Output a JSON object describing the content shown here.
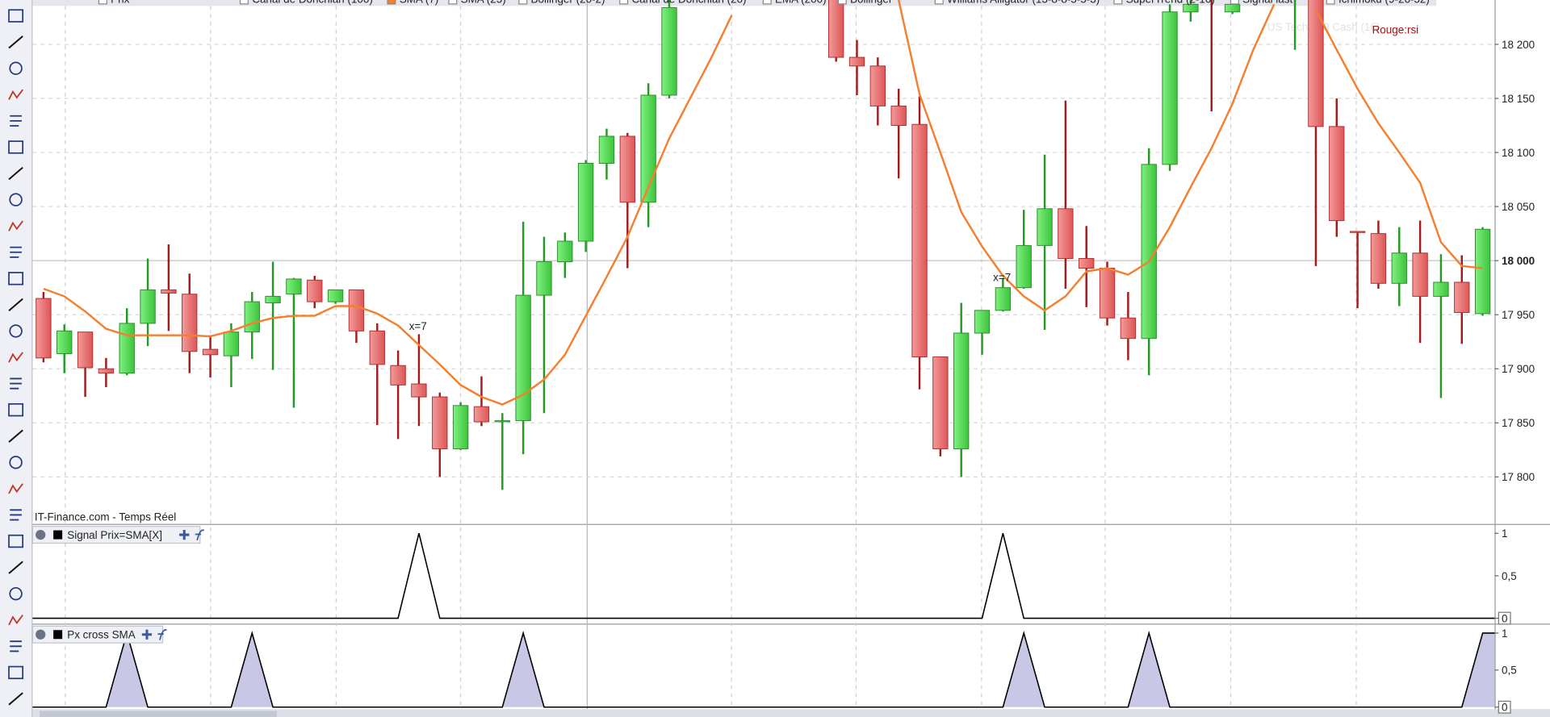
{
  "header": {
    "indicators": [
      "Prix",
      "Canal de Donchian (100)",
      "SMA (7)",
      "SMA (25)",
      "Bollinger (20-2)",
      "Canal de Donchian (20)",
      "EMA (200)",
      "Bollinger",
      "Williams Alligator (13-8-8-5-5-3)",
      "SuperTrend (2-10)",
      "Signal last",
      "Ichimoku (9-26-52)"
    ]
  },
  "chart_data": [
    {
      "type": "candlestick",
      "watermark": "US Tech 100 Cash (1€)",
      "note": "Rouge:rsi",
      "source": "IT-Finance.com - Temps Réel",
      "up_color": "#4cd44c",
      "down_color": "#e96b6b",
      "open": [
        17965,
        17914,
        17934,
        17900,
        17896,
        17942,
        17973,
        17969,
        17918,
        17912,
        17934,
        17961,
        17969,
        17982,
        17962,
        17973,
        17935,
        17903,
        17886,
        17874,
        17826,
        17865,
        17851,
        17852,
        17968,
        17999,
        18018,
        18090,
        18115,
        18054,
        18153,
        null,
        null,
        null,
        null,
        null,
        null,
        null,
        18250,
        18188,
        18180,
        18143,
        18126,
        17911,
        17826,
        17933,
        17954,
        17975,
        18014,
        18048,
        18002,
        17993,
        17947,
        17928,
        18089,
        18230,
        18250,
        18230,
        null,
        null,
        18250,
        18250,
        18124,
        18027,
        18025,
        17979,
        18007,
        17967,
        17980,
        17951
      ],
      "high": [
        17971,
        17941,
        17934,
        17910,
        17956,
        18002,
        18015,
        17988,
        17931,
        17942,
        17971,
        17999,
        17984,
        17986,
        17973,
        17973,
        17942,
        17917,
        17932,
        17878,
        17869,
        17893,
        17859,
        18036,
        18022,
        18026,
        18093,
        18122,
        18118,
        18164,
        18241,
        null,
        null,
        null,
        null,
        null,
        null,
        null,
        18260,
        18204,
        18188,
        18159,
        18152,
        17911,
        17961,
        17954,
        17984,
        18047,
        18098,
        18148,
        18032,
        17999,
        17971,
        18104,
        18237,
        18245,
        18260,
        18241,
        null,
        null,
        18270,
        18260,
        18150,
        18027,
        18037,
        18031,
        18037,
        18006,
        18005,
        18031
      ],
      "low": [
        17906,
        17896,
        17874,
        17883,
        17894,
        17921,
        17935,
        17896,
        17892,
        17883,
        17909,
        17899,
        17864,
        17956,
        17960,
        17924,
        17848,
        17835,
        17847,
        17800,
        17825,
        17847,
        17788,
        17821,
        17859,
        17984,
        18008,
        18075,
        17993,
        18031,
        18150,
        null,
        null,
        null,
        null,
        null,
        null,
        null,
        18184,
        18153,
        18125,
        18076,
        17881,
        17819,
        17800,
        17913,
        17953,
        17974,
        17936,
        17974,
        17957,
        17940,
        17908,
        17894,
        18083,
        18221,
        18138,
        18228,
        null,
        null,
        18195,
        17995,
        18022,
        17956,
        17974,
        17958,
        17924,
        17873,
        17923,
        17949
      ],
      "close": [
        17910,
        17935,
        17901,
        17896,
        17942,
        17973,
        17970,
        17916,
        17913,
        17934,
        17962,
        17967,
        17983,
        17962,
        17973,
        17935,
        17904,
        17885,
        17874,
        17826,
        17866,
        17851,
        17852,
        17968,
        17999,
        18018,
        18090,
        18115,
        18054,
        18153,
        18234,
        null,
        null,
        null,
        null,
        null,
        null,
        null,
        18188,
        18180,
        18143,
        18125,
        17911,
        17826,
        17933,
        17954,
        17975,
        18014,
        18048,
        18002,
        17993,
        17947,
        17928,
        18089,
        18230,
        18237,
        18245,
        18237,
        null,
        null,
        18260,
        18124,
        18037,
        18026,
        17979,
        18007,
        17967,
        17980,
        17952,
        18029
      ],
      "series": [
        {
          "name": "SMA (7)",
          "color": "#f47f2f",
          "values": [
            17974,
            17967,
            17953,
            17937,
            17931,
            17931,
            17931,
            17931,
            17930,
            17935,
            17942,
            17947,
            17949,
            17949,
            17958,
            17958,
            17951,
            17940,
            17922,
            17904,
            17885,
            17874,
            17867,
            17876,
            17890,
            17913,
            17949,
            17985,
            18022,
            18068,
            18113,
            18150,
            18187,
            18227,
            null,
            null,
            null,
            null,
            null,
            null,
            null,
            18241,
            18154,
            18100,
            18045,
            18013,
            17986,
            17967,
            17954,
            17967,
            17990,
            17993,
            17987,
            17999,
            18031,
            18068,
            18104,
            18145,
            18195,
            18237,
            null,
            18232,
            18195,
            18159,
            18127,
            18100,
            18072,
            18017,
            17995,
            17993
          ]
        }
      ],
      "annotations": [
        {
          "text": "x=7",
          "x": 18,
          "y": 17936
        },
        {
          "text": "x=7",
          "x": 46,
          "y": 17981
        }
      ],
      "ylim": [
        17757,
        18241
      ],
      "yticks": [
        {
          "value": 17800,
          "label": "17 800"
        },
        {
          "value": 17850,
          "label": "17 850"
        },
        {
          "value": 17900,
          "label": "17 900"
        },
        {
          "value": 17950,
          "label": "17 950"
        },
        {
          "value": 18000,
          "label": "18 000"
        },
        {
          "value": 18050,
          "label": "18 050"
        },
        {
          "value": 18100,
          "label": "18 100"
        },
        {
          "value": 18150,
          "label": "18 150"
        },
        {
          "value": 18200,
          "label": "18 200"
        }
      ],
      "grid": true
    },
    {
      "type": "line",
      "title": "Signal Prix=SMA[X]",
      "color": "#000000",
      "values": [
        0,
        0,
        0,
        0,
        0,
        0,
        0,
        0,
        0,
        0,
        0,
        0,
        0,
        0,
        0,
        0,
        0,
        0,
        1,
        0,
        0,
        0,
        0,
        0,
        0,
        0,
        0,
        0,
        0,
        0,
        0,
        0,
        0,
        0,
        0,
        0,
        0,
        0,
        0,
        0,
        0,
        0,
        0,
        0,
        0,
        0,
        1,
        0,
        0,
        0,
        0,
        0,
        0,
        0,
        0,
        0,
        0,
        0,
        0,
        0,
        0,
        0,
        0,
        0,
        0,
        0,
        0,
        0,
        0,
        0
      ],
      "ylim": [
        0,
        1
      ],
      "yticks": [
        0,
        {
          "value": 0.5,
          "label": "0,5"
        },
        1
      ]
    },
    {
      "type": "area",
      "title": "Px cross SMA",
      "color": "#000000",
      "fill": "#c8c8e6",
      "values": [
        0,
        0,
        0,
        0,
        1,
        0,
        0,
        0,
        0,
        0,
        1,
        0,
        0,
        0,
        0,
        0,
        0,
        0,
        0,
        0,
        0,
        0,
        0,
        1,
        0,
        0,
        0,
        0,
        0,
        0,
        0,
        0,
        0,
        0,
        0,
        0,
        0,
        0,
        0,
        0,
        0,
        0,
        0,
        0,
        0,
        0,
        0,
        1,
        0,
        0,
        0,
        0,
        0,
        1,
        0,
        0,
        0,
        0,
        0,
        0,
        0,
        0,
        0,
        0,
        0,
        0,
        0,
        0,
        0,
        1
      ],
      "ylim": [
        0,
        1
      ],
      "yticks": [
        0,
        {
          "value": 0.5,
          "label": "0,5"
        },
        1
      ]
    }
  ]
}
